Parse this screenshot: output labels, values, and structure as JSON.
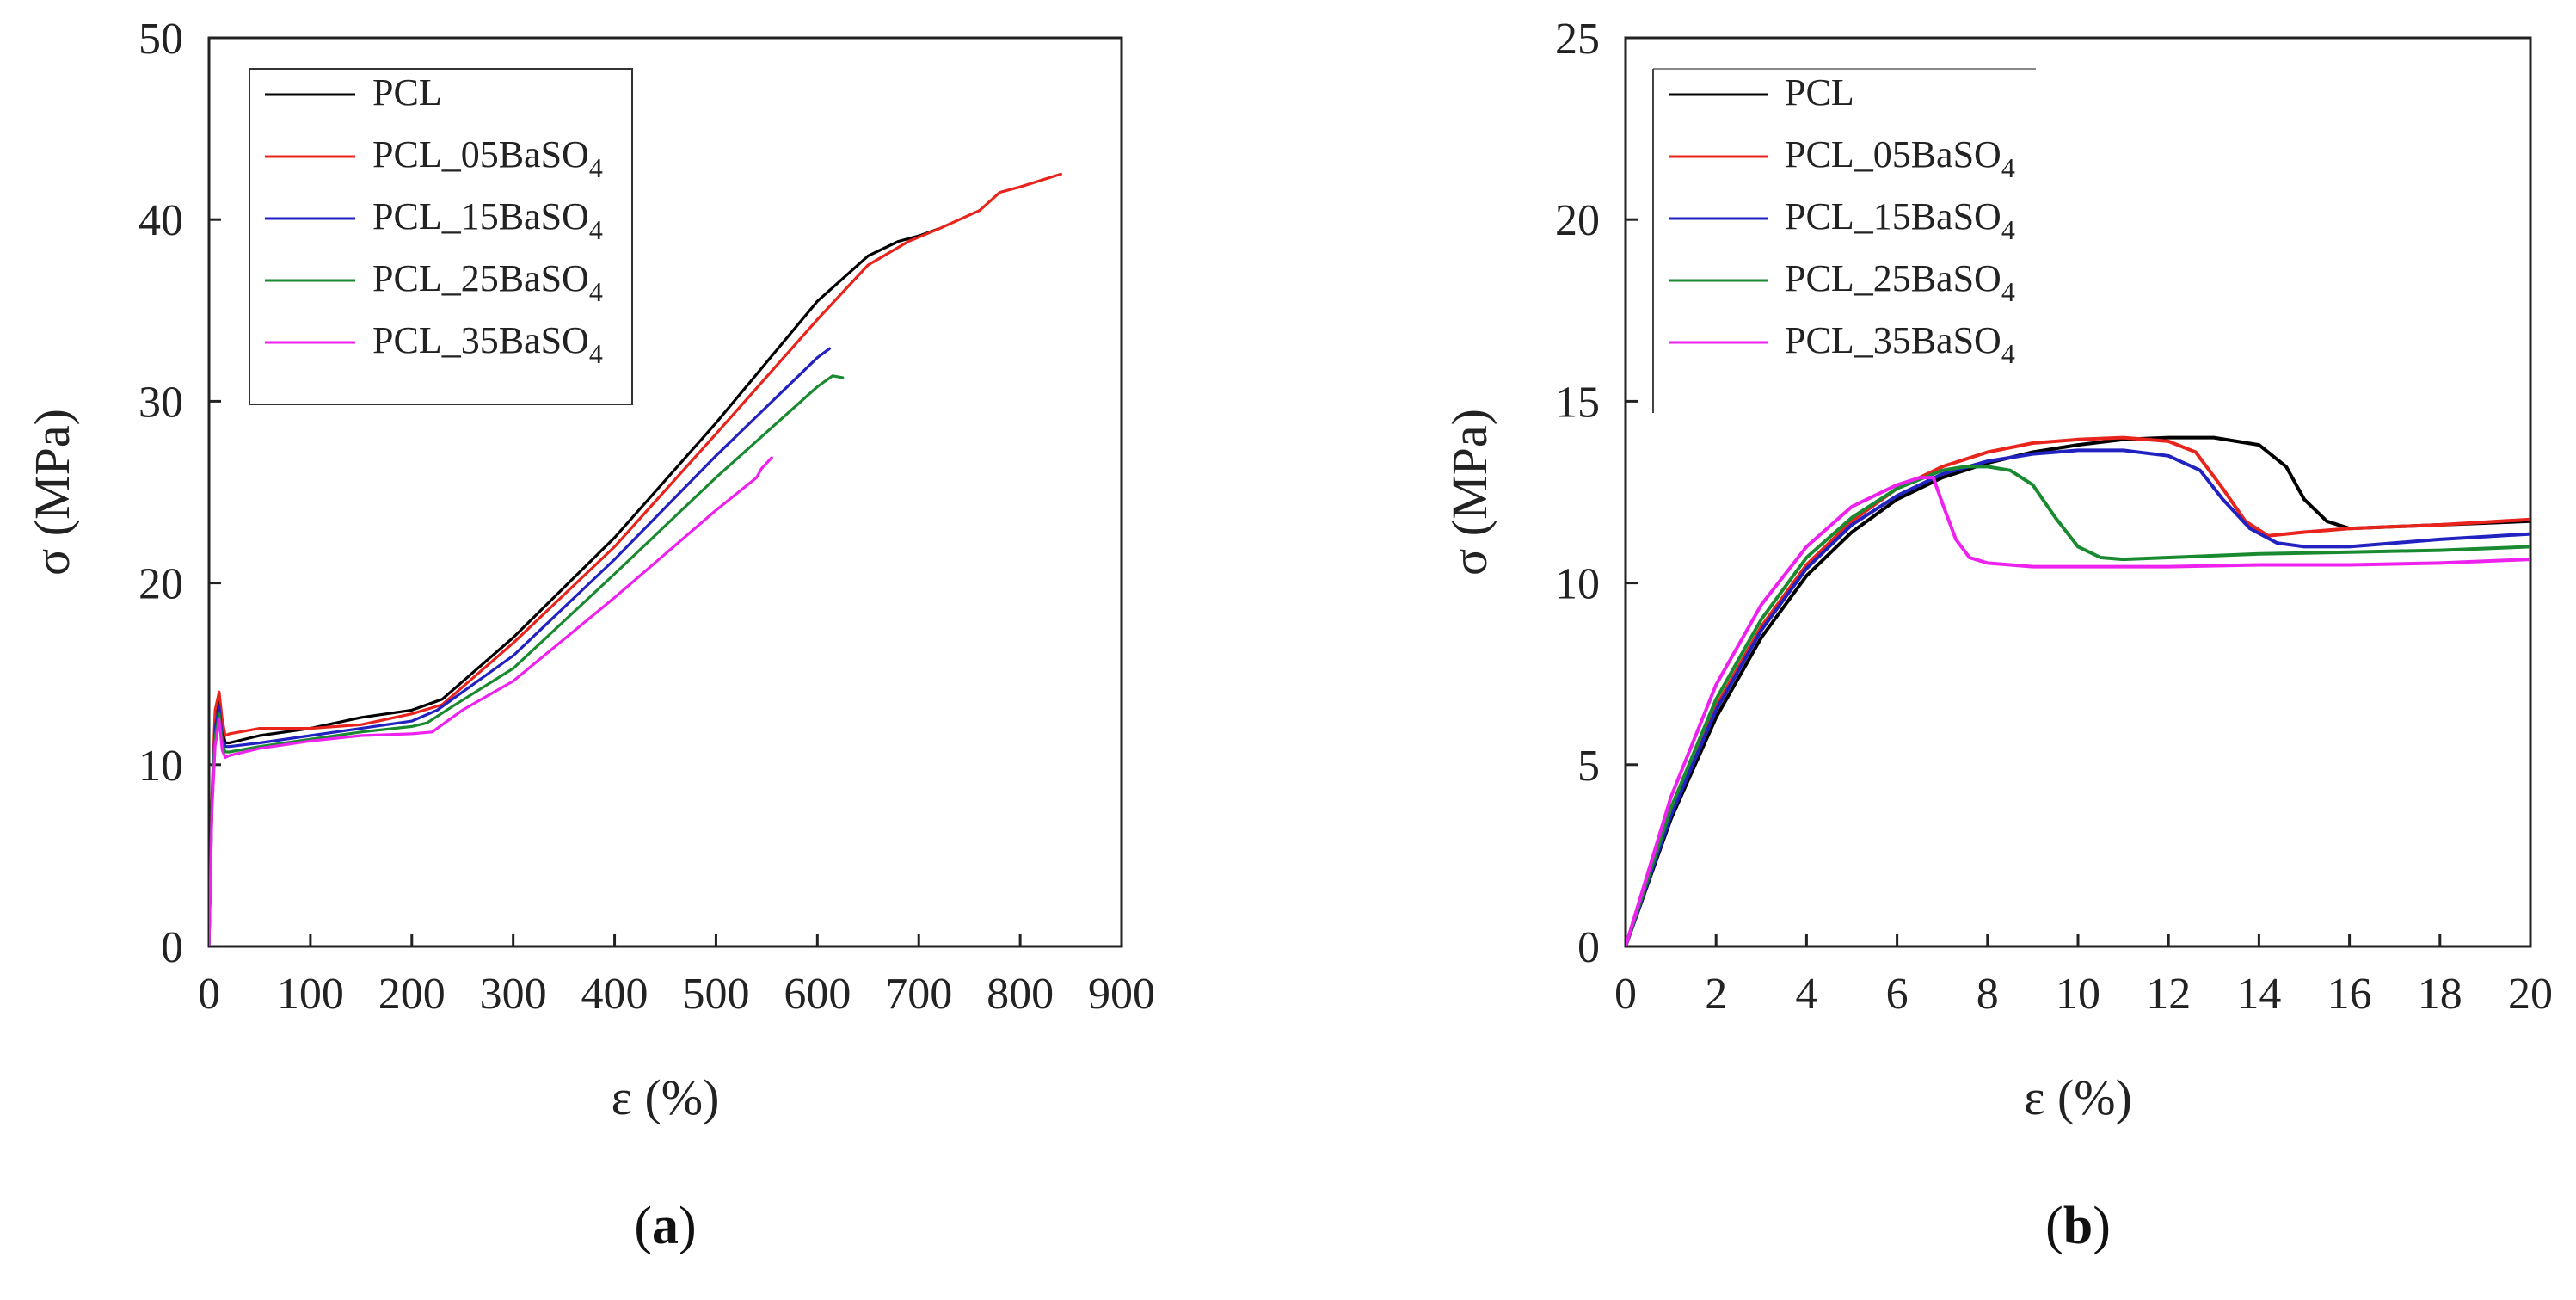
{
  "chart_data": [
    {
      "type": "line",
      "panel_label": "a",
      "xlabel": "ε (%)",
      "ylabel": "σ (MPa)",
      "xlim": [
        0,
        900
      ],
      "ylim": [
        0,
        50
      ],
      "xticks": [
        0,
        100,
        200,
        300,
        400,
        500,
        600,
        700,
        800,
        900
      ],
      "yticks": [
        0,
        10,
        20,
        30,
        40,
        50
      ],
      "grid": false,
      "legend_position": "top-left",
      "series": [
        {
          "name": "PCL",
          "sub": "",
          "color": "#000000",
          "x": [
            0,
            3,
            6,
            10,
            13,
            16,
            20,
            50,
            100,
            150,
            200,
            230,
            300,
            400,
            500,
            600,
            650,
            680,
            700,
            720
          ],
          "y": [
            0,
            8,
            12.5,
            13.8,
            12,
            11.2,
            11.2,
            11.6,
            12,
            12.6,
            13,
            13.6,
            17,
            22.5,
            28.8,
            35.5,
            38,
            38.8,
            39.1,
            39.5
          ]
        },
        {
          "name": "PCL_05BaSO",
          "sub": "4",
          "color": "#e8241c",
          "x": [
            0,
            3,
            6,
            10,
            13,
            16,
            20,
            50,
            100,
            150,
            200,
            230,
            300,
            400,
            500,
            600,
            650,
            690,
            720,
            760,
            780,
            800,
            840
          ],
          "y": [
            0,
            8.5,
            13,
            14,
            12.5,
            11.6,
            11.7,
            12,
            12,
            12.2,
            12.8,
            13.3,
            16.7,
            22,
            28.2,
            34.5,
            37.5,
            38.8,
            39.5,
            40.5,
            41.5,
            41.8,
            42.5
          ]
        },
        {
          "name": "PCL_15BaSO",
          "sub": "4",
          "color": "#2222c0",
          "x": [
            0,
            3,
            6,
            10,
            13,
            16,
            20,
            50,
            100,
            150,
            200,
            225,
            300,
            400,
            500,
            600,
            612
          ],
          "y": [
            0,
            8,
            12,
            13.2,
            11.5,
            11.0,
            11.0,
            11.2,
            11.6,
            12,
            12.4,
            13,
            16,
            21.3,
            27,
            32.4,
            32.9
          ]
        },
        {
          "name": "PCL_25BaSO",
          "sub": "4",
          "color": "#1a8a30",
          "x": [
            0,
            3,
            6,
            10,
            13,
            16,
            20,
            50,
            100,
            150,
            200,
            215,
            240,
            300,
            400,
            500,
            600,
            615,
            625
          ],
          "y": [
            0,
            8,
            11.5,
            12.8,
            11.2,
            10.7,
            10.7,
            11,
            11.4,
            11.8,
            12.1,
            12.3,
            13.2,
            15.3,
            20.5,
            25.8,
            30.8,
            31.4,
            31.3
          ]
        },
        {
          "name": "PCL_35BaSO",
          "sub": "4",
          "color": "#ee22ee",
          "x": [
            0,
            3,
            6,
            10,
            13,
            16,
            20,
            50,
            100,
            150,
            200,
            220,
            250,
            300,
            400,
            500,
            540,
            545,
            555
          ],
          "y": [
            0,
            7.5,
            11,
            12.5,
            10.8,
            10.4,
            10.5,
            10.9,
            11.3,
            11.6,
            11.7,
            11.8,
            13,
            14.6,
            19.2,
            24,
            25.8,
            26.3,
            26.9
          ]
        }
      ]
    },
    {
      "type": "line",
      "panel_label": "b",
      "xlabel": "ε (%)",
      "ylabel": "σ (MPa)",
      "xlim": [
        0,
        20
      ],
      "ylim": [
        0,
        25
      ],
      "xticks": [
        0,
        2,
        4,
        6,
        8,
        10,
        12,
        14,
        16,
        18,
        20
      ],
      "yticks": [
        0,
        5,
        10,
        15,
        20,
        25
      ],
      "grid": false,
      "legend_position": "top-left",
      "series": [
        {
          "name": "PCL",
          "sub": "",
          "color": "#000000",
          "x": [
            0,
            1,
            2,
            3,
            4,
            5,
            6,
            7,
            8,
            9,
            10,
            11,
            12,
            13,
            14,
            14.6,
            15,
            15.5,
            16,
            18,
            20
          ],
          "y": [
            0,
            3.5,
            6.3,
            8.5,
            10.2,
            11.4,
            12.3,
            12.9,
            13.3,
            13.6,
            13.8,
            13.95,
            14.0,
            14.0,
            13.8,
            13.2,
            12.3,
            11.7,
            11.5,
            11.6,
            11.7
          ]
        },
        {
          "name": "PCL_05BaSO",
          "sub": "4",
          "color": "#e8241c",
          "x": [
            0,
            1,
            2,
            3,
            4,
            5,
            6,
            7,
            8,
            9,
            10,
            11,
            12,
            12.6,
            13.2,
            13.7,
            14.2,
            15,
            16,
            18,
            20
          ],
          "y": [
            0,
            3.7,
            6.6,
            8.8,
            10.5,
            11.7,
            12.6,
            13.2,
            13.6,
            13.85,
            13.95,
            14.0,
            13.9,
            13.6,
            12.6,
            11.7,
            11.3,
            11.4,
            11.5,
            11.6,
            11.75
          ]
        },
        {
          "name": "PCL_15BaSO",
          "sub": "4",
          "color": "#2222c0",
          "x": [
            0,
            1,
            2,
            3,
            4,
            5,
            6,
            7,
            8,
            9,
            10,
            11,
            12,
            12.7,
            13.2,
            13.8,
            14.4,
            15,
            16,
            18,
            20
          ],
          "y": [
            0,
            3.6,
            6.5,
            8.7,
            10.4,
            11.6,
            12.4,
            13.0,
            13.35,
            13.55,
            13.65,
            13.65,
            13.5,
            13.1,
            12.3,
            11.5,
            11.1,
            11.0,
            11.0,
            11.2,
            11.35
          ]
        },
        {
          "name": "PCL_25BaSO",
          "sub": "4",
          "color": "#1a8a30",
          "x": [
            0,
            1,
            2,
            3,
            4,
            5,
            6,
            7,
            7.5,
            8,
            8.5,
            9,
            9.5,
            10,
            10.5,
            11,
            12,
            14,
            16,
            18,
            20
          ],
          "y": [
            0,
            3.8,
            6.8,
            9.0,
            10.7,
            11.8,
            12.6,
            13.1,
            13.2,
            13.2,
            13.1,
            12.7,
            11.8,
            11.0,
            10.7,
            10.65,
            10.7,
            10.8,
            10.85,
            10.9,
            11.0
          ]
        },
        {
          "name": "PCL_35BaSO",
          "sub": "4",
          "color": "#ee22ee",
          "x": [
            0,
            1,
            2,
            3,
            4,
            5,
            6,
            6.5,
            6.8,
            7.0,
            7.3,
            7.6,
            8,
            9,
            10,
            12,
            14,
            16,
            18,
            20
          ],
          "y": [
            0,
            4.1,
            7.2,
            9.4,
            11.0,
            12.1,
            12.7,
            12.9,
            12.9,
            12.2,
            11.2,
            10.7,
            10.55,
            10.45,
            10.45,
            10.45,
            10.5,
            10.5,
            10.55,
            10.65
          ]
        }
      ]
    }
  ]
}
